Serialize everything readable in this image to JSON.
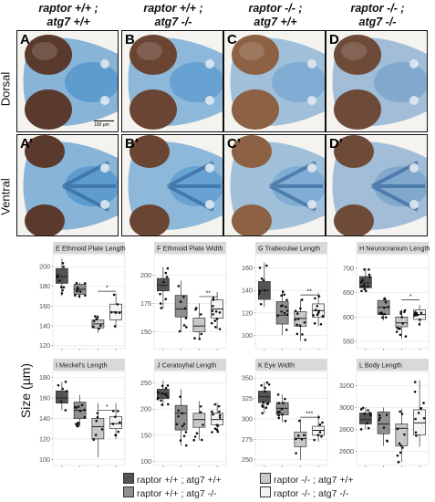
{
  "group_titles": [
    {
      "line1": "raptor +/+ ;",
      "line2": "atg7 +/+"
    },
    {
      "line1": "raptor +/+ ;",
      "line2": "atg7 -/-"
    },
    {
      "line1": "raptor -/- ;",
      "line2": "atg7 +/+"
    },
    {
      "line1": "raptor -/- ;",
      "line2": "atg7 -/-"
    }
  ],
  "row_labels": {
    "dorsal": "Dorsal",
    "ventral": "Ventral"
  },
  "panel_labels": {
    "dorsal": [
      "A",
      "B",
      "C",
      "D"
    ],
    "ventral": [
      "A’",
      "B’",
      "C’",
      "D’"
    ]
  },
  "scale_bar": "100 µm",
  "y_axis_label": "Size (µm)",
  "legend": {
    "items": [
      {
        "label": "raptor +/+ ; atg7 +/+",
        "color": "#545454"
      },
      {
        "label": "raptor +/+ ; atg7 -/-",
        "color": "#8f8f8f"
      },
      {
        "label": "raptor -/- ; atg7 +/+",
        "color": "#c8c8c8"
      },
      {
        "label": "raptor -/- ; atg7 -/-",
        "color": "#f4f4f4"
      }
    ]
  },
  "chart_data": [
    {
      "type": "box",
      "letter": "E",
      "title": "Ethmoid Plate Length",
      "yticks": [
        120,
        140,
        160,
        180,
        200
      ],
      "ylim": [
        117,
        212
      ],
      "groups": [
        {
          "q1": 183,
          "median": 190,
          "q3": 198,
          "whisker_low": 170,
          "whisker_high": 208
        },
        {
          "q1": 172,
          "median": 177,
          "q3": 182,
          "whisker_low": 168,
          "whisker_high": 184
        },
        {
          "q1": 138,
          "median": 142,
          "q3": 146,
          "whisker_low": 133,
          "whisker_high": 151
        },
        {
          "q1": 146,
          "median": 154,
          "q3": 162,
          "whisker_low": 138,
          "whisker_high": 173
        }
      ],
      "significance": "*",
      "sig_between": [
        3,
        4
      ],
      "sig_y": 175
    },
    {
      "type": "box",
      "letter": "F",
      "title": "Ethmoid Plate Width",
      "yticks": [
        150,
        175,
        200
      ],
      "ylim": [
        135,
        218
      ],
      "groups": [
        {
          "q1": 186,
          "median": 191,
          "q3": 197,
          "whisker_low": 170,
          "whisker_high": 207
        },
        {
          "q1": 163,
          "median": 170,
          "q3": 182,
          "whisker_low": 150,
          "whisker_high": 195
        },
        {
          "q1": 150,
          "median": 155,
          "q3": 162,
          "whisker_low": 143,
          "whisker_high": 175
        },
        {
          "q1": 162,
          "median": 170,
          "q3": 178,
          "whisker_low": 152,
          "whisker_high": 185
        }
      ],
      "significance": "**",
      "sig_between": [
        3,
        4
      ],
      "sig_y": 181
    },
    {
      "type": "box",
      "letter": "G",
      "title": "Trabeculae Length",
      "yticks": [
        100,
        120,
        140,
        160
      ],
      "ylim": [
        88,
        172
      ],
      "groups": [
        {
          "q1": 132,
          "median": 140,
          "q3": 148,
          "whisker_low": 125,
          "whisker_high": 165
        },
        {
          "q1": 110,
          "median": 118,
          "q3": 130,
          "whisker_low": 100,
          "whisker_high": 140
        },
        {
          "q1": 108,
          "median": 115,
          "q3": 121,
          "whisker_low": 95,
          "whisker_high": 132
        },
        {
          "q1": 116,
          "median": 122,
          "q3": 128,
          "whisker_low": 108,
          "whisker_high": 138
        }
      ],
      "significance": "**",
      "sig_between": [
        3,
        4
      ],
      "sig_y": 136
    },
    {
      "type": "box",
      "letter": "H",
      "title": "Neurocranium Length",
      "yticks": [
        550,
        600,
        650,
        700
      ],
      "ylim": [
        535,
        728
      ],
      "groups": [
        {
          "q1": 660,
          "median": 670,
          "q3": 683,
          "whisker_low": 652,
          "whisker_high": 700
        },
        {
          "q1": 605,
          "median": 620,
          "q3": 634,
          "whisker_low": 593,
          "whisker_high": 640
        },
        {
          "q1": 580,
          "median": 588,
          "q3": 600,
          "whisker_low": 555,
          "whisker_high": 615
        },
        {
          "q1": 595,
          "median": 605,
          "q3": 615,
          "whisker_low": 585,
          "whisker_high": 625
        }
      ],
      "significance": "*",
      "sig_between": [
        3,
        4
      ],
      "sig_y": 635
    },
    {
      "type": "box",
      "letter": "I",
      "title": "Meckel's Length",
      "yticks": [
        100,
        120,
        140,
        160,
        180
      ],
      "ylim": [
        94,
        186
      ],
      "groups": [
        {
          "q1": 155,
          "median": 160,
          "q3": 167,
          "whisker_low": 148,
          "whisker_high": 176
        },
        {
          "q1": 140,
          "median": 148,
          "q3": 156,
          "whisker_low": 132,
          "whisker_high": 163
        },
        {
          "q1": 120,
          "median": 132,
          "q3": 140,
          "whisker_low": 102,
          "whisker_high": 155
        },
        {
          "q1": 130,
          "median": 135,
          "q3": 142,
          "whisker_low": 120,
          "whisker_high": 155
        }
      ],
      "significance": "*",
      "sig_between": [
        3,
        4
      ],
      "sig_y": 148
    },
    {
      "type": "box",
      "letter": "J",
      "title": "Ceratoyhal Length",
      "yticks": [
        100,
        150,
        200,
        250
      ],
      "ylim": [
        92,
        272
      ],
      "groups": [
        {
          "q1": 220,
          "median": 230,
          "q3": 238,
          "whisker_low": 205,
          "whisker_high": 255
        },
        {
          "q1": 160,
          "median": 192,
          "q3": 207,
          "whisker_low": 130,
          "whisker_high": 238
        },
        {
          "q1": 165,
          "median": 180,
          "q3": 192,
          "whisker_low": 140,
          "whisker_high": 215
        },
        {
          "q1": 170,
          "median": 180,
          "q3": 192,
          "whisker_low": 155,
          "whisker_high": 212
        }
      ],
      "significance": "",
      "sig_between": [
        3,
        4
      ],
      "sig_y": 0
    },
    {
      "type": "box",
      "letter": "K",
      "title": "Eye Width",
      "yticks": [
        250,
        275,
        300,
        325,
        350
      ],
      "ylim": [
        243,
        358
      ],
      "groups": [
        {
          "q1": 320,
          "median": 327,
          "q3": 334,
          "whisker_low": 307,
          "whisker_high": 345
        },
        {
          "q1": 305,
          "median": 313,
          "q3": 320,
          "whisker_low": 296,
          "whisker_high": 330
        },
        {
          "q1": 266,
          "median": 276,
          "q3": 284,
          "whisker_low": 250,
          "whisker_high": 300
        },
        {
          "q1": 280,
          "median": 286,
          "q3": 291,
          "whisker_low": 272,
          "whisker_high": 305
        }
      ],
      "significance": "***",
      "sig_between": [
        3,
        4
      ],
      "sig_y": 302
    },
    {
      "type": "box",
      "letter": "L",
      "title": "Body Length",
      "yticks": [
        2600,
        2800,
        3000,
        3200
      ],
      "ylim": [
        2470,
        3330
      ],
      "groups": [
        {
          "q1": 2850,
          "median": 2890,
          "q3": 2950,
          "whisker_low": 2800,
          "whisker_high": 3000
        },
        {
          "q1": 2760,
          "median": 2850,
          "q3": 2960,
          "whisker_low": 2650,
          "whisker_high": 3000
        },
        {
          "q1": 2650,
          "median": 2810,
          "q3": 2850,
          "whisker_low": 2500,
          "whisker_high": 2990
        },
        {
          "q1": 2750,
          "median": 2860,
          "q3": 2980,
          "whisker_low": 2640,
          "whisker_high": 3250
        }
      ],
      "significance": "",
      "sig_between": [
        3,
        4
      ],
      "sig_y": 0
    }
  ]
}
